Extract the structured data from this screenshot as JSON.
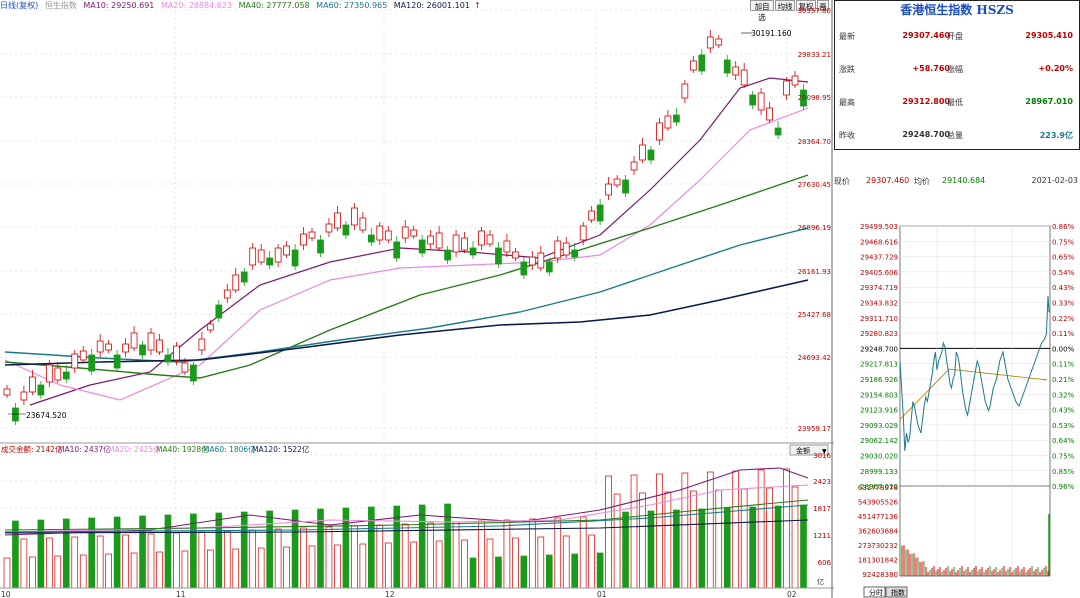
{
  "header": {
    "period_label": "日线(复权)",
    "index_name": "恒生指数",
    "ma": [
      {
        "label": "MA10: 29250.691",
        "color": "#7a1a6e"
      },
      {
        "label": "MA20: 28884.623",
        "color": "#e98ae0"
      },
      {
        "label": "MA40: 27777.058",
        "color": "#2a7a1a"
      },
      {
        "label": "MA60: 27350.965",
        "color": "#1a7a8a"
      },
      {
        "label": "MA120: 26001.101",
        "color": "#0a1a4a"
      }
    ],
    "arrow": "↑",
    "buttons": [
      "加自选",
      "均线",
      "复权",
      "画"
    ]
  },
  "price_axis": [
    "30557.80",
    "29833.21",
    "29098.95",
    "28364.70",
    "27630.45",
    "26896.19",
    "26161.93",
    "25427.68",
    "24693.42",
    "23959.17"
  ],
  "price_annotations": {
    "high": "30191.160",
    "low": "23674.520"
  },
  "volume_header": {
    "label": "成交金额: 2142亿",
    "ma": [
      {
        "label": "MA10: 2437亿",
        "color": "#7a1a6e"
      },
      {
        "label": "MA20: 2425亿",
        "color": "#e98ae0"
      },
      {
        "label": "MA40: 1928亿",
        "color": "#2a7a1a"
      },
      {
        "label": "MA60: 1806亿",
        "color": "#1a7a8a"
      },
      {
        "label": "MA120: 1522亿",
        "color": "#0a1a4a"
      }
    ],
    "dropdown": "金额"
  },
  "volume_axis": [
    "3016",
    "2423",
    "1817",
    "1211",
    "606"
  ],
  "volume_unit": "亿",
  "date_axis": [
    "10",
    "11",
    "12",
    "01",
    "02"
  ],
  "quote": {
    "title": "香港恒生指数 HSZS",
    "rows": [
      {
        "l1": "最新",
        "v1": "29307.460",
        "c1": "red",
        "l2": "开盘",
        "v2": "29305.410",
        "c2": "red"
      },
      {
        "l1": "涨跌",
        "v1": "+58.760",
        "c1": "red",
        "l2": "涨幅",
        "v2": "+0.20%",
        "c2": "red"
      },
      {
        "l1": "最高",
        "v1": "29312.800",
        "c1": "red",
        "l2": "最低",
        "v2": "28967.010",
        "c2": "grn"
      },
      {
        "l1": "昨收",
        "v1": "29248.700",
        "c1": "",
        "l2": "总量",
        "v2": "223.9亿",
        "c2": "teal"
      }
    ]
  },
  "intraday": {
    "now_label": "现价",
    "now_value": "29307.460",
    "avg_label": "均价",
    "avg_value": "29140.684",
    "date": "2021-02-03",
    "left_axis": [
      "29499.503",
      "29468.616",
      "29437.729",
      "29405.606",
      "29374.719",
      "29343.832",
      "29311.710",
      "29280.823",
      "29248.700",
      "29217.813",
      "29186.926",
      "29154.803",
      "29123.916",
      "29093.029",
      "29062.142",
      "29030.020",
      "28999.133",
      "28967.010"
    ],
    "right_axis": [
      "0.86%",
      "0.75%",
      "0.65%",
      "0.54%",
      "0.43%",
      "0.33%",
      "0.22%",
      "0.11%",
      "0.00%",
      "0.11%",
      "0.21%",
      "0.32%",
      "0.43%",
      "0.53%",
      "0.64%",
      "0.75%",
      "0.85%",
      "0.96%"
    ],
    "vol_axis": [
      "632778978",
      "543905526",
      "451477136",
      "362603684",
      "273730232",
      "181301842",
      "92428380"
    ],
    "tabs": [
      "分时",
      "指数"
    ]
  }
}
